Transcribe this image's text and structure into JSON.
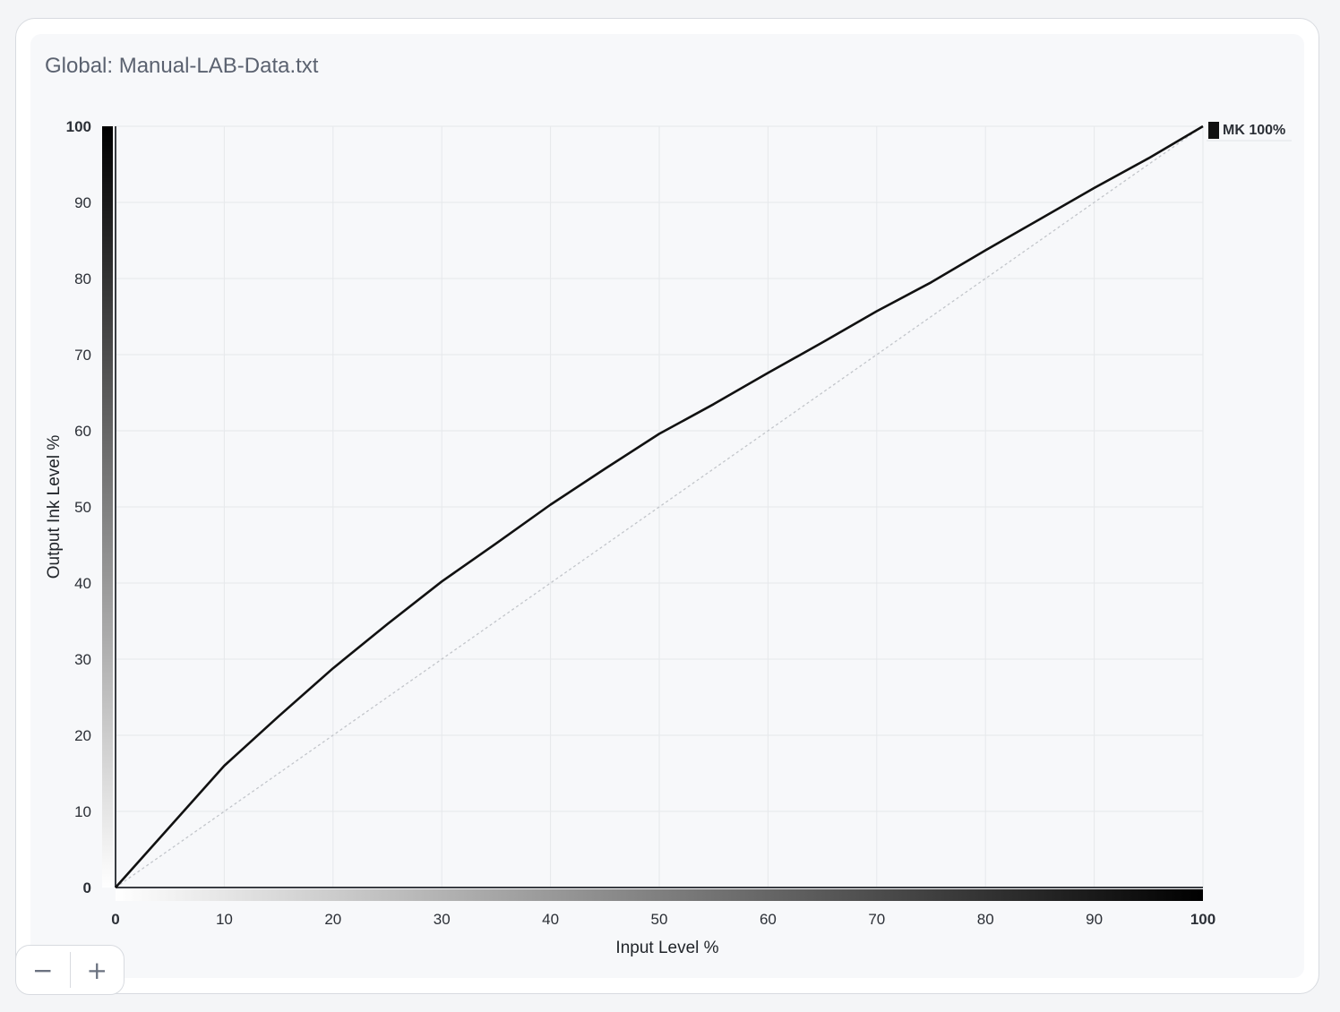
{
  "panel": {
    "title": "Global: Manual-LAB-Data.txt"
  },
  "zoom": {
    "minus_label": "−",
    "plus_label": "+"
  },
  "chart_data": {
    "type": "line",
    "title": "",
    "xlabel": "Input Level %",
    "ylabel": "Output Ink Level %",
    "xlim": [
      0,
      100
    ],
    "ylim": [
      0,
      100
    ],
    "x_ticks": [
      "0",
      "10",
      "20",
      "30",
      "40",
      "50",
      "60",
      "70",
      "80",
      "90",
      "100"
    ],
    "y_ticks": [
      "0",
      "10",
      "20",
      "30",
      "40",
      "50",
      "60",
      "70",
      "80",
      "90",
      "100"
    ],
    "grid": true,
    "legend_position": "top-right",
    "series": [
      {
        "name": "MK 100%",
        "color": "#111111",
        "x": [
          0,
          5,
          10,
          15,
          20,
          25,
          30,
          35,
          40,
          45,
          50,
          55,
          60,
          65,
          70,
          75,
          80,
          85,
          90,
          95,
          100
        ],
        "y": [
          0,
          8,
          16,
          22.5,
          28.8,
          34.6,
          40.2,
          45.2,
          50.3,
          55,
          59.6,
          63.5,
          67.6,
          71.6,
          75.7,
          79.5,
          83.7,
          87.8,
          91.9,
          95.8,
          100
        ]
      }
    ],
    "reference": {
      "x": [
        0,
        100
      ],
      "y": [
        0,
        100
      ],
      "color": "#c2c5ca"
    }
  }
}
